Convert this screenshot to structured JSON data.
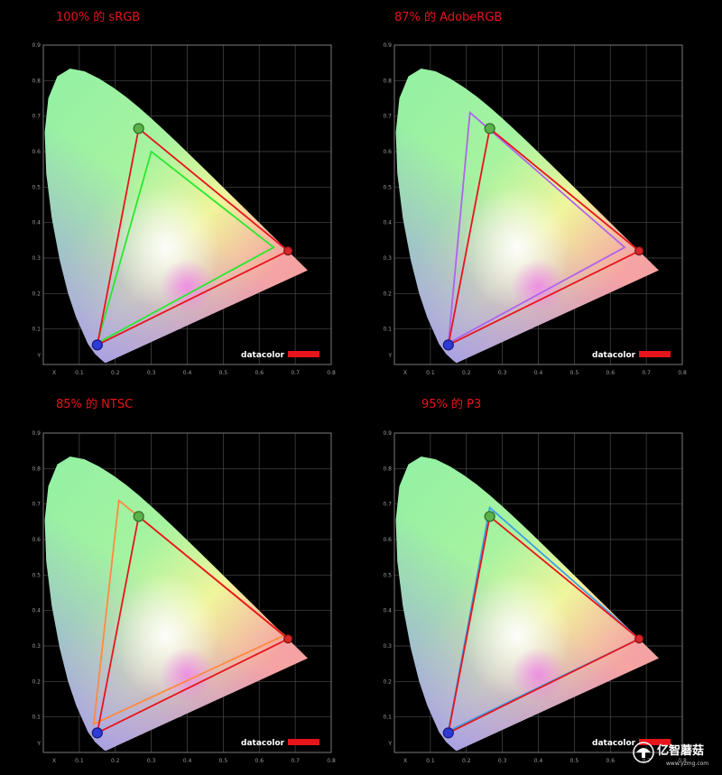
{
  "chart_data": [
    {
      "type": "scatter",
      "title": "100% 的 sRGB",
      "xlabel": "X",
      "ylabel": "Y",
      "xlim": [
        0,
        0.8
      ],
      "ylim": [
        0,
        0.9
      ],
      "x_ticks": [
        "0.1",
        "0.2",
        "0.3",
        "0.4",
        "0.5",
        "0.6",
        "0.7",
        "0.8"
      ],
      "y_ticks": [
        "0.1",
        "0.2",
        "0.3",
        "0.4",
        "0.5",
        "0.6",
        "0.7",
        "0.8",
        "0.9"
      ],
      "grid": true,
      "brand": "datacolor",
      "series": [
        {
          "points": [
            [
              0.64,
              0.33
            ],
            [
              0.3,
              0.6
            ],
            [
              0.15,
              0.06
            ]
          ],
          "color": "#29e82f"
        },
        {
          "points": [
            [
              0.68,
              0.32
            ],
            [
              0.265,
              0.665
            ],
            [
              0.15,
              0.055
            ]
          ],
          "color": "#e8141b"
        }
      ]
    },
    {
      "type": "scatter",
      "title": "87% 的 AdobeRGB",
      "xlabel": "X",
      "ylabel": "Y",
      "xlim": [
        0,
        0.8
      ],
      "ylim": [
        0,
        0.9
      ],
      "x_ticks": [
        "0.1",
        "0.2",
        "0.3",
        "0.4",
        "0.5",
        "0.6",
        "0.7",
        "0.8"
      ],
      "y_ticks": [
        "0.1",
        "0.2",
        "0.3",
        "0.4",
        "0.5",
        "0.6",
        "0.7",
        "0.8",
        "0.9"
      ],
      "grid": true,
      "brand": "datacolor",
      "series": [
        {
          "points": [
            [
              0.64,
              0.33
            ],
            [
              0.21,
              0.71
            ],
            [
              0.15,
              0.06
            ]
          ],
          "color": "#b064ec"
        },
        {
          "points": [
            [
              0.68,
              0.32
            ],
            [
              0.265,
              0.665
            ],
            [
              0.15,
              0.055
            ]
          ],
          "color": "#e8141b"
        }
      ]
    },
    {
      "type": "scatter",
      "title": "85% 的 NTSC",
      "xlabel": "X",
      "ylabel": "Y",
      "xlim": [
        0,
        0.8
      ],
      "ylim": [
        0,
        0.9
      ],
      "x_ticks": [
        "0.1",
        "0.2",
        "0.3",
        "0.4",
        "0.5",
        "0.6",
        "0.7",
        "0.8"
      ],
      "y_ticks": [
        "0.1",
        "0.2",
        "0.3",
        "0.4",
        "0.5",
        "0.6",
        "0.7",
        "0.8",
        "0.9"
      ],
      "grid": true,
      "brand": "datacolor",
      "series": [
        {
          "points": [
            [
              0.67,
              0.33
            ],
            [
              0.21,
              0.71
            ],
            [
              0.14,
              0.08
            ]
          ],
          "color": "#ff8a3d"
        },
        {
          "points": [
            [
              0.68,
              0.32
            ],
            [
              0.265,
              0.665
            ],
            [
              0.15,
              0.055
            ]
          ],
          "color": "#e8141b"
        }
      ]
    },
    {
      "type": "scatter",
      "title": "95% 的 P3",
      "xlabel": "X",
      "ylabel": "Y",
      "xlim": [
        0,
        0.8
      ],
      "ylim": [
        0,
        0.9
      ],
      "x_ticks": [
        "0.1",
        "0.2",
        "0.3",
        "0.4",
        "0.5",
        "0.6",
        "0.7",
        "0.8"
      ],
      "y_ticks": [
        "0.1",
        "0.2",
        "0.3",
        "0.4",
        "0.5",
        "0.6",
        "0.7",
        "0.8",
        "0.9"
      ],
      "grid": true,
      "brand": "datacolor",
      "series": [
        {
          "points": [
            [
              0.68,
              0.32
            ],
            [
              0.265,
              0.69
            ],
            [
              0.15,
              0.06
            ]
          ],
          "color": "#3aa0e8"
        },
        {
          "points": [
            [
              0.68,
              0.32
            ],
            [
              0.265,
              0.665
            ],
            [
              0.15,
              0.055
            ]
          ],
          "color": "#e8141b"
        }
      ]
    }
  ],
  "watermark": {
    "name": "亿智蘑菇",
    "url": "www.yzmg.com"
  }
}
